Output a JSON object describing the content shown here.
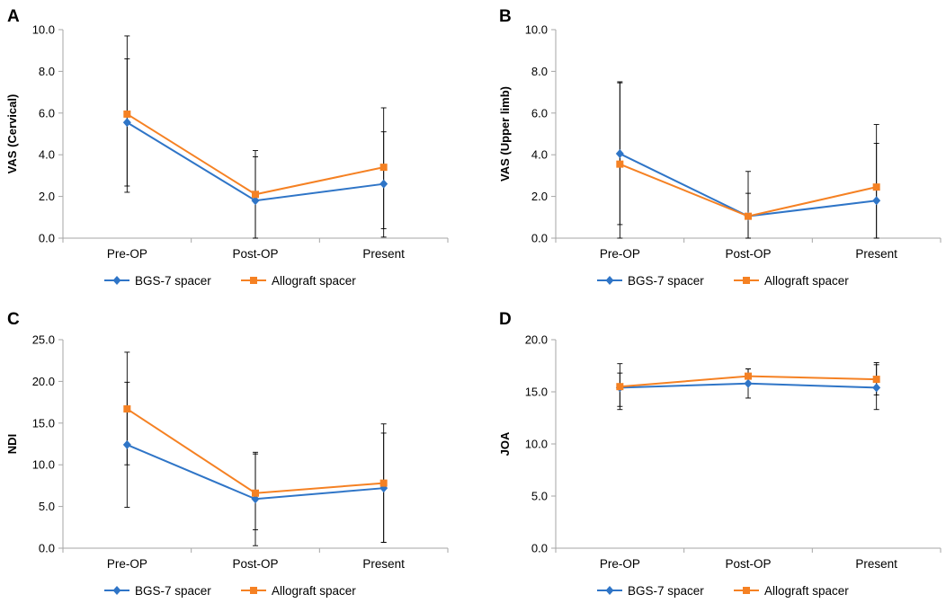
{
  "colors": {
    "series1": "#2f75c7",
    "series2": "#f58123",
    "axis": "#a6a6a6",
    "error": "#000000"
  },
  "chart_data": [
    {
      "panel": "A",
      "type": "line",
      "ylabel": "VAS (Cervical)",
      "categories": [
        "Pre-OP",
        "Post-OP",
        "Present"
      ],
      "ylim": [
        0,
        10
      ],
      "yticks": [
        "0.0",
        "2.0",
        "4.0",
        "6.0",
        "8.0",
        "10.0"
      ],
      "series": [
        {
          "name": "BGS-7 spacer",
          "marker": "diamond",
          "values": [
            5.55,
            1.8,
            2.6
          ],
          "err_low": [
            2.2,
            0,
            0.05
          ],
          "err_high": [
            8.6,
            3.9,
            5.1
          ]
        },
        {
          "name": "Allograft spacer",
          "marker": "square",
          "values": [
            5.95,
            2.1,
            3.4
          ],
          "err_low": [
            2.5,
            0,
            0.45
          ],
          "err_high": [
            9.7,
            4.2,
            6.25
          ]
        }
      ]
    },
    {
      "panel": "B",
      "type": "line",
      "ylabel": "VAS (Upper limb)",
      "categories": [
        "Pre-OP",
        "Post-OP",
        "Present"
      ],
      "ylim": [
        0,
        10
      ],
      "yticks": [
        "0.0",
        "2.0",
        "4.0",
        "6.0",
        "8.0",
        "10.0"
      ],
      "series": [
        {
          "name": "BGS-7 spacer",
          "marker": "diamond",
          "values": [
            4.05,
            1.05,
            1.8
          ],
          "err_low": [
            0.65,
            0,
            0
          ],
          "err_high": [
            7.45,
            2.15,
            4.55
          ]
        },
        {
          "name": "Allograft spacer",
          "marker": "square",
          "values": [
            3.55,
            1.05,
            2.45
          ],
          "err_low": [
            0,
            0,
            0
          ],
          "err_high": [
            7.5,
            3.2,
            5.45
          ]
        }
      ]
    },
    {
      "panel": "C",
      "type": "line",
      "ylabel": "NDI",
      "categories": [
        "Pre-OP",
        "Post-OP",
        "Present"
      ],
      "ylim": [
        0,
        25
      ],
      "yticks": [
        "0.0",
        "5.0",
        "10.0",
        "15.0",
        "20.0",
        "25.0"
      ],
      "series": [
        {
          "name": "BGS-7 spacer",
          "marker": "diamond",
          "values": [
            12.4,
            5.9,
            7.2
          ],
          "err_low": [
            4.9,
            0.3,
            0.7
          ],
          "err_high": [
            19.9,
            11.5,
            13.8
          ]
        },
        {
          "name": "Allograft spacer",
          "marker": "square",
          "values": [
            16.7,
            6.6,
            7.8
          ],
          "err_low": [
            10.0,
            2.2,
            0.7
          ],
          "err_high": [
            23.5,
            11.3,
            14.9
          ]
        }
      ]
    },
    {
      "panel": "D",
      "type": "line",
      "ylabel": "JOA",
      "categories": [
        "Pre-OP",
        "Post-OP",
        "Present"
      ],
      "ylim": [
        0,
        20
      ],
      "yticks": [
        "0.0",
        "5.0",
        "10.0",
        "15.0",
        "20.0"
      ],
      "series": [
        {
          "name": "BGS-7 spacer",
          "marker": "diamond",
          "values": [
            15.4,
            15.8,
            15.4
          ],
          "err_low": [
            13.3,
            14.4,
            13.3
          ],
          "err_high": [
            17.7,
            17.2,
            17.8
          ]
        },
        {
          "name": "Allograft spacer",
          "marker": "square",
          "values": [
            15.5,
            16.5,
            16.2
          ],
          "err_low": [
            13.6,
            15.8,
            14.7
          ],
          "err_high": [
            16.8,
            17.2,
            17.6
          ]
        }
      ]
    }
  ]
}
